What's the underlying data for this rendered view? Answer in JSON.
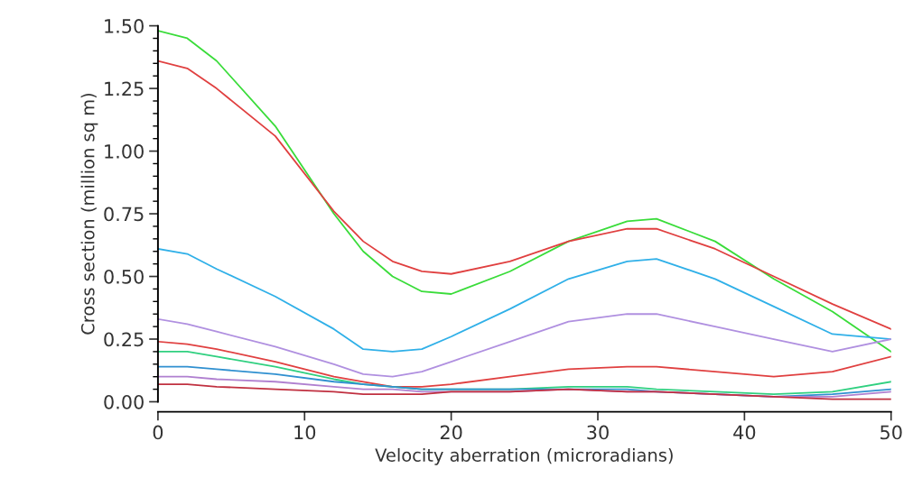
{
  "chart_data": {
    "type": "line",
    "xlabel": "Velocity aberration (microradians)",
    "ylabel": "Cross section (million sq m)",
    "x": [
      0,
      2,
      4,
      8,
      12,
      14,
      16,
      18,
      20,
      24,
      28,
      32,
      34,
      38,
      42,
      46,
      50
    ],
    "series": [
      {
        "color": "#3adc3a",
        "values": [
          1.48,
          1.45,
          1.36,
          1.1,
          0.75,
          0.6,
          0.5,
          0.44,
          0.43,
          0.52,
          0.64,
          0.72,
          0.73,
          0.64,
          0.49,
          0.36,
          0.2
        ]
      },
      {
        "color": "#e04040",
        "values": [
          1.36,
          1.33,
          1.25,
          1.06,
          0.76,
          0.64,
          0.56,
          0.52,
          0.51,
          0.56,
          0.64,
          0.69,
          0.69,
          0.61,
          0.5,
          0.39,
          0.29
        ]
      },
      {
        "color": "#30b0e8",
        "values": [
          0.61,
          0.59,
          0.53,
          0.42,
          0.29,
          0.21,
          0.2,
          0.21,
          0.26,
          0.37,
          0.49,
          0.56,
          0.57,
          0.49,
          0.38,
          0.27,
          0.25
        ]
      },
      {
        "color": "#b090e0",
        "values": [
          0.33,
          0.31,
          0.28,
          0.22,
          0.15,
          0.11,
          0.1,
          0.12,
          0.16,
          0.24,
          0.32,
          0.35,
          0.35,
          0.3,
          0.25,
          0.2,
          0.25
        ]
      },
      {
        "color": "#e04040",
        "values": [
          0.24,
          0.23,
          0.21,
          0.16,
          0.1,
          0.08,
          0.06,
          0.06,
          0.07,
          0.1,
          0.13,
          0.14,
          0.14,
          0.12,
          0.1,
          0.12,
          0.18
        ]
      },
      {
        "color": "#30d080",
        "values": [
          0.2,
          0.2,
          0.18,
          0.14,
          0.09,
          0.07,
          0.06,
          0.05,
          0.05,
          0.05,
          0.06,
          0.06,
          0.05,
          0.04,
          0.03,
          0.04,
          0.08
        ]
      },
      {
        "color": "#3090d0",
        "values": [
          0.14,
          0.14,
          0.13,
          0.11,
          0.08,
          0.07,
          0.06,
          0.05,
          0.05,
          0.05,
          0.05,
          0.05,
          0.04,
          0.03,
          0.02,
          0.03,
          0.05
        ]
      },
      {
        "color": "#b080d0",
        "values": [
          0.1,
          0.1,
          0.09,
          0.08,
          0.06,
          0.05,
          0.05,
          0.04,
          0.04,
          0.04,
          0.05,
          0.04,
          0.04,
          0.03,
          0.02,
          0.02,
          0.04
        ]
      },
      {
        "color": "#c03040",
        "values": [
          0.07,
          0.07,
          0.06,
          0.05,
          0.04,
          0.03,
          0.03,
          0.03,
          0.04,
          0.04,
          0.05,
          0.04,
          0.04,
          0.03,
          0.02,
          0.01,
          0.01
        ]
      }
    ],
    "xlim": [
      0,
      50
    ],
    "xticks": [
      0,
      10,
      20,
      30,
      40,
      50
    ],
    "ylim": [
      0,
      1.5
    ],
    "yticks": [
      {
        "value": 0,
        "label": "0.00"
      },
      {
        "value": 0.25,
        "label": "0.25"
      },
      {
        "value": 0.5,
        "label": "0.50"
      },
      {
        "value": 0.75,
        "label": "0.75"
      },
      {
        "value": 1.0,
        "label": "1.00"
      },
      {
        "value": 1.25,
        "label": "1.25"
      },
      {
        "value": 1.5,
        "label": "1.50"
      }
    ],
    "grid": false,
    "marker": "none",
    "line_style": "solid"
  }
}
